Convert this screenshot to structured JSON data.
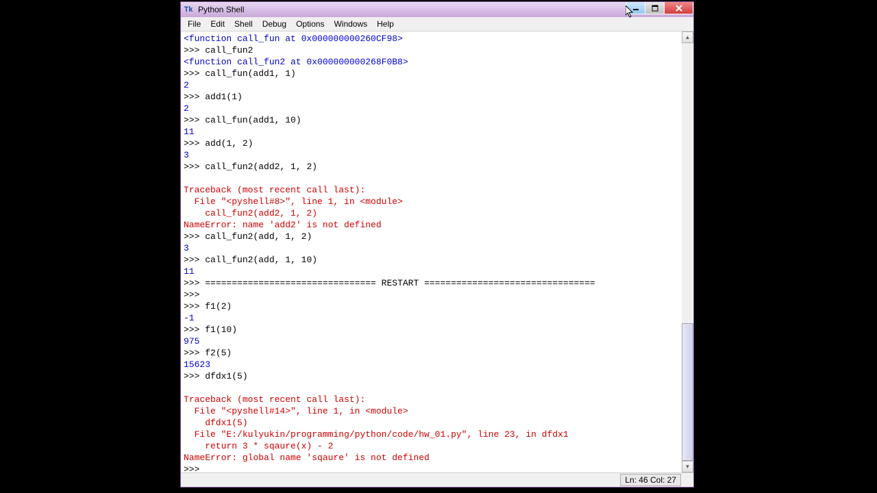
{
  "window": {
    "title": "Python Shell",
    "icon_label": "Tk"
  },
  "menubar": {
    "items": [
      "File",
      "Edit",
      "Shell",
      "Debug",
      "Options",
      "Windows",
      "Help"
    ]
  },
  "lines": [
    {
      "type": "blue",
      "text": "<function call_fun at 0x000000000260CF98>"
    },
    {
      "type": "prompt",
      "prefix": ">>> ",
      "text": "call_fun2"
    },
    {
      "type": "blue",
      "text": "<function call_fun2 at 0x000000000268F0B8>"
    },
    {
      "type": "prompt",
      "prefix": ">>> ",
      "text": "call_fun(add1, 1)"
    },
    {
      "type": "blue",
      "text": "2"
    },
    {
      "type": "prompt",
      "prefix": ">>> ",
      "text": "add1(1)"
    },
    {
      "type": "blue",
      "text": "2"
    },
    {
      "type": "prompt",
      "prefix": ">>> ",
      "text": "call_fun(add1, 10)"
    },
    {
      "type": "blue",
      "text": "11"
    },
    {
      "type": "prompt",
      "prefix": ">>> ",
      "text": "add(1, 2)"
    },
    {
      "type": "blue",
      "text": "3"
    },
    {
      "type": "prompt",
      "prefix": ">>> ",
      "text": "call_fun2(add2, 1, 2)"
    },
    {
      "type": "black",
      "text": ""
    },
    {
      "type": "red",
      "text": "Traceback (most recent call last):"
    },
    {
      "type": "red",
      "text": "  File \"<pyshell#8>\", line 1, in <module>"
    },
    {
      "type": "red",
      "text": "    call_fun2(add2, 1, 2)"
    },
    {
      "type": "red",
      "text": "NameError: name 'add2' is not defined"
    },
    {
      "type": "prompt",
      "prefix": ">>> ",
      "text": "call_fun2(add, 1, 2)"
    },
    {
      "type": "blue",
      "text": "3"
    },
    {
      "type": "prompt",
      "prefix": ">>> ",
      "text": "call_fun2(add, 1, 10)"
    },
    {
      "type": "blue",
      "text": "11"
    },
    {
      "type": "prompt",
      "prefix": ">>> ",
      "text": "================================ RESTART ================================"
    },
    {
      "type": "prompt",
      "prefix": ">>> ",
      "text": ""
    },
    {
      "type": "prompt",
      "prefix": ">>> ",
      "text": "f1(2)"
    },
    {
      "type": "blue",
      "text": "-1"
    },
    {
      "type": "prompt",
      "prefix": ">>> ",
      "text": "f1(10)"
    },
    {
      "type": "blue",
      "text": "975"
    },
    {
      "type": "prompt",
      "prefix": ">>> ",
      "text": "f2(5)"
    },
    {
      "type": "blue",
      "text": "15623"
    },
    {
      "type": "prompt",
      "prefix": ">>> ",
      "text": "dfdx1(5)"
    },
    {
      "type": "black",
      "text": ""
    },
    {
      "type": "red",
      "text": "Traceback (most recent call last):"
    },
    {
      "type": "red",
      "text": "  File \"<pyshell#14>\", line 1, in <module>"
    },
    {
      "type": "red",
      "text": "    dfdx1(5)"
    },
    {
      "type": "red",
      "text": "  File \"E:/kulyukin/programming/python/code/hw_01.py\", line 23, in dfdx1"
    },
    {
      "type": "red",
      "text": "    return 3 * sqaure(x) - 2"
    },
    {
      "type": "red",
      "text": "NameError: global name 'sqaure' is not defined"
    },
    {
      "type": "prompt",
      "prefix": ">>> ",
      "text": ""
    }
  ],
  "statusbar": {
    "position": "Ln: 46 Col: 27"
  },
  "scrollbar": {
    "thumb_top_percent": 67,
    "thumb_height_percent": 33
  },
  "colors": {
    "blue": "#0000cc",
    "red": "#cc0000",
    "titlebar_purple": "#c8a8d8",
    "bg_black": "#000000"
  }
}
